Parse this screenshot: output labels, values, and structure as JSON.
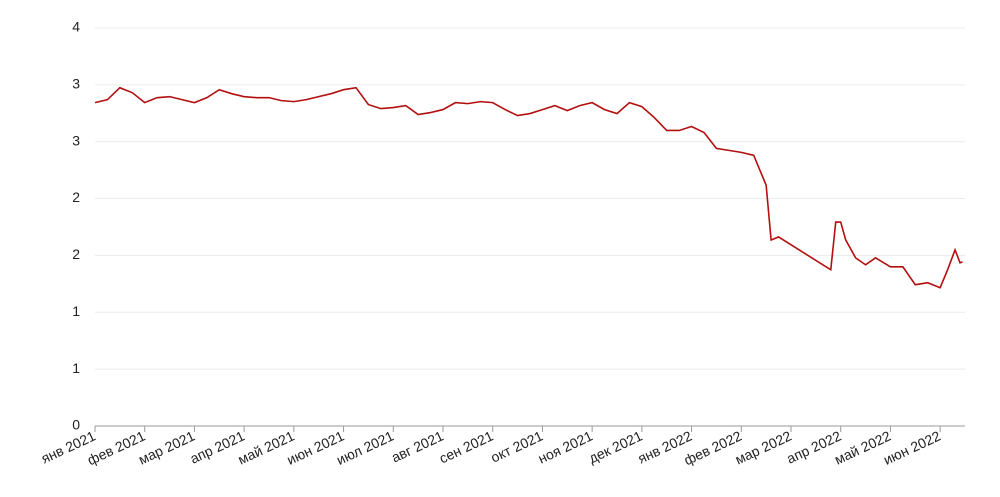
{
  "chart_data": {
    "type": "line",
    "x": [
      0,
      0.25,
      0.5,
      0.75,
      1,
      1.25,
      1.5,
      1.75,
      2,
      2.25,
      2.5,
      2.75,
      3,
      3.25,
      3.5,
      3.75,
      4,
      4.25,
      4.5,
      4.75,
      5,
      5.25,
      5.5,
      5.75,
      6,
      6.25,
      6.5,
      6.75,
      7,
      7.25,
      7.5,
      7.75,
      8,
      8.25,
      8.5,
      8.75,
      9,
      9.25,
      9.5,
      9.75,
      10,
      10.25,
      10.5,
      10.75,
      11,
      11.25,
      11.5,
      11.75,
      12,
      12.25,
      12.5,
      12.75,
      13,
      13.25,
      13.5,
      13.6,
      13.75,
      14.8,
      14.9,
      15,
      15.1,
      15.3,
      15.5,
      15.7,
      16,
      16.25,
      16.5,
      16.75,
      17,
      17.15,
      17.3,
      17.4,
      17.45
    ],
    "series": [
      {
        "color": "#b30f0f",
        "values": [
          3.25,
          3.28,
          3.4,
          3.35,
          3.25,
          3.3,
          3.31,
          3.28,
          3.25,
          3.3,
          3.38,
          3.34,
          3.31,
          3.3,
          3.3,
          3.27,
          3.26,
          3.28,
          3.31,
          3.34,
          3.38,
          3.4,
          3.23,
          3.19,
          3.2,
          3.22,
          3.13,
          3.15,
          3.18,
          3.25,
          3.24,
          3.26,
          3.25,
          3.18,
          3.12,
          3.14,
          3.18,
          3.22,
          3.17,
          3.22,
          3.25,
          3.18,
          3.14,
          3.25,
          3.21,
          3.1,
          2.97,
          2.97,
          3.01,
          2.95,
          2.79,
          2.77,
          2.75,
          2.72,
          2.42,
          1.87,
          1.9,
          1.57,
          2.05,
          2.05,
          1.87,
          1.69,
          1.62,
          1.69,
          1.6,
          1.6,
          1.42,
          1.44,
          1.39,
          1.57,
          1.77,
          1.64,
          1.65
        ]
      }
    ],
    "xlim": [
      0,
      17.5
    ],
    "xticks": [
      {
        "value": 0,
        "label": "янв 2021"
      },
      {
        "value": 1,
        "label": "фев 2021"
      },
      {
        "value": 2,
        "label": "мар 2021"
      },
      {
        "value": 3,
        "label": "апр 2021"
      },
      {
        "value": 4,
        "label": "май 2021"
      },
      {
        "value": 5,
        "label": "июн 2021"
      },
      {
        "value": 6,
        "label": "июл 2021"
      },
      {
        "value": 7,
        "label": "авг 2021"
      },
      {
        "value": 8,
        "label": "сен 2021"
      },
      {
        "value": 9,
        "label": "окт 2021"
      },
      {
        "value": 10,
        "label": "ноя 2021"
      },
      {
        "value": 11,
        "label": "дек 2021"
      },
      {
        "value": 12,
        "label": "янв 2022"
      },
      {
        "value": 13,
        "label": "фев 2022"
      },
      {
        "value": 14,
        "label": "мар 2022"
      },
      {
        "value": 15,
        "label": "апр 2022"
      },
      {
        "value": 16,
        "label": "май 2022"
      },
      {
        "value": 17,
        "label": "июн 2022"
      }
    ],
    "ylim": [
      0,
      4
    ],
    "yticks": [
      0,
      {
        "value": 0.571,
        "label": "1"
      },
      {
        "value": 1.143,
        "label": "1"
      },
      {
        "value": 1.714,
        "label": "2"
      },
      {
        "value": 2.286,
        "label": "2"
      },
      {
        "value": 2.857,
        "label": "3"
      },
      {
        "value": 3.429,
        "label": "3"
      },
      4
    ],
    "grid": true
  }
}
